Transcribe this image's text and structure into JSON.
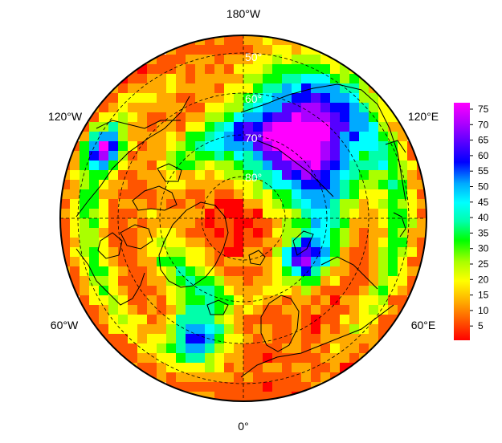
{
  "map": {
    "projection": "north-polar-stereographic",
    "longitude_labels": {
      "top": "180°W",
      "upper_left": "120°W",
      "upper_right": "120°E",
      "lower_left": "60°W",
      "lower_right": "60°E",
      "bottom": "0°"
    },
    "latitude_labels": [
      "50°",
      "60°",
      "70°",
      "80°"
    ],
    "colorbar": {
      "ticks": [
        "75",
        "70",
        "65",
        "60",
        "55",
        "50",
        "45",
        "40",
        "35",
        "30",
        "25",
        "20",
        "15",
        "10",
        "5"
      ],
      "colors": [
        "#ff0000",
        "#ff5500",
        "#ffaa00",
        "#ffff00",
        "#aaff00",
        "#00ff00",
        "#00ffaa",
        "#00ffff",
        "#00aaff",
        "#0000ff",
        "#5500ff",
        "#aa00ff",
        "#ff00ff"
      ]
    }
  }
}
